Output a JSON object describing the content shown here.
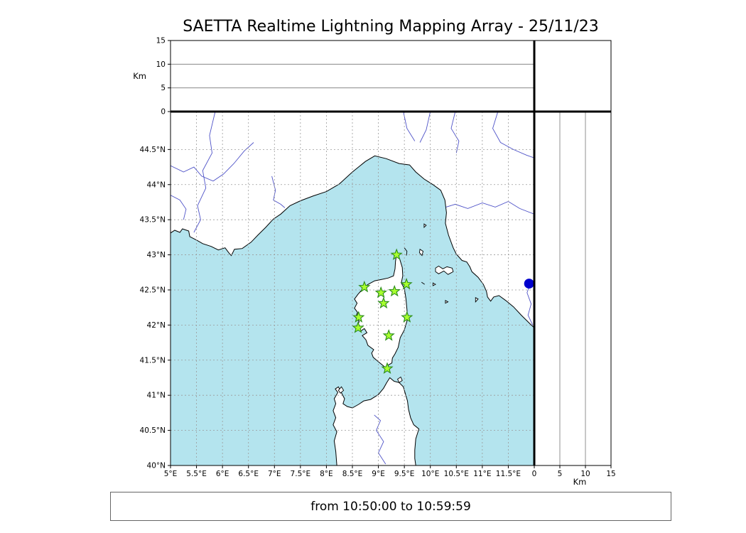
{
  "caption_text": "from 10:50:00 to 10:59:59",
  "colors": {
    "sea": "#b4e4ee",
    "land": "#ffffff",
    "coast": "#000000",
    "river": "#4f53c8",
    "grid": "#9a9a9a",
    "panel_grid": "#777777",
    "station_fill": "#a8ff2f",
    "station_edge": "#2a8a1a",
    "event_marker": "#0000cd"
  },
  "chart_data": {
    "type": "map",
    "title": "SAETTA Realtime Lightning Mapping Array - 25/11/23",
    "time_window": {
      "from": "10:50:00",
      "to": "10:59:59"
    },
    "map_panel": {
      "lon_range": [
        5.0,
        12.0
      ],
      "lat_range": [
        40.0,
        45.04
      ],
      "grid_style": "dashed",
      "lon_ticks": [
        {
          "value": 5,
          "label": "5°E"
        },
        {
          "value": 5.5,
          "label": "5.5°E"
        },
        {
          "value": 6,
          "label": "6°E"
        },
        {
          "value": 6.5,
          "label": "6.5°E"
        },
        {
          "value": 7,
          "label": "7°E"
        },
        {
          "value": 7.5,
          "label": "7.5°E"
        },
        {
          "value": 8,
          "label": "8°E"
        },
        {
          "value": 8.5,
          "label": "8.5°E"
        },
        {
          "value": 9,
          "label": "9°E"
        },
        {
          "value": 9.5,
          "label": "9.5°E"
        },
        {
          "value": 10,
          "label": "10°E"
        },
        {
          "value": 10.5,
          "label": "10.5°E"
        },
        {
          "value": 11,
          "label": "11°E"
        },
        {
          "value": 11.5,
          "label": "11.5°E"
        }
      ],
      "lat_ticks": [
        {
          "value": 40,
          "label": "40°N"
        },
        {
          "value": 40.5,
          "label": "40.5°N"
        },
        {
          "value": 41,
          "label": "41°N"
        },
        {
          "value": 41.5,
          "label": "41.5°N"
        },
        {
          "value": 42,
          "label": "42°N"
        },
        {
          "value": 42.5,
          "label": "42.5°N"
        },
        {
          "value": 43,
          "label": "43°N"
        },
        {
          "value": 43.5,
          "label": "43.5°N"
        },
        {
          "value": 44,
          "label": "44°N"
        },
        {
          "value": 44.5,
          "label": "44.5°N"
        }
      ]
    },
    "altitude_panels": {
      "unit_label": "Km",
      "range_km": [
        0,
        15
      ],
      "ticks_km": [
        {
          "value": 0,
          "label": "0"
        },
        {
          "value": 5,
          "label": "5"
        },
        {
          "value": 10,
          "label": "10"
        },
        {
          "value": 15,
          "label": "15"
        }
      ],
      "gridlines_km": [
        5,
        10
      ]
    },
    "stations_lon_lat": [
      [
        9.35,
        43.0
      ],
      [
        8.73,
        42.54
      ],
      [
        9.05,
        42.46
      ],
      [
        9.31,
        42.48
      ],
      [
        9.54,
        42.58
      ],
      [
        9.1,
        42.31
      ],
      [
        8.62,
        42.11
      ],
      [
        9.55,
        42.11
      ],
      [
        8.61,
        41.96
      ],
      [
        9.2,
        41.85
      ],
      [
        9.17,
        41.38
      ]
    ],
    "event_marker": {
      "lon": 11.9,
      "lat": 42.59
    },
    "geo": {
      "mainland": [
        [
          5.0,
          43.31
        ],
        [
          5.08,
          43.35
        ],
        [
          5.18,
          43.32
        ],
        [
          5.23,
          43.37
        ],
        [
          5.35,
          43.34
        ],
        [
          5.37,
          43.26
        ],
        [
          5.5,
          43.21
        ],
        [
          5.62,
          43.16
        ],
        [
          5.78,
          43.12
        ],
        [
          5.92,
          43.07
        ],
        [
          6.05,
          43.1
        ],
        [
          6.13,
          43.02
        ],
        [
          6.17,
          42.99
        ],
        [
          6.23,
          43.08
        ],
        [
          6.38,
          43.09
        ],
        [
          6.55,
          43.18
        ],
        [
          6.68,
          43.28
        ],
        [
          6.83,
          43.39
        ],
        [
          6.98,
          43.51
        ],
        [
          7.12,
          43.58
        ],
        [
          7.3,
          43.7
        ],
        [
          7.5,
          43.77
        ],
        [
          7.75,
          43.84
        ],
        [
          8.0,
          43.9
        ],
        [
          8.25,
          44.01
        ],
        [
          8.5,
          44.18
        ],
        [
          8.75,
          44.33
        ],
        [
          8.93,
          44.41
        ],
        [
          9.15,
          44.37
        ],
        [
          9.4,
          44.3
        ],
        [
          9.6,
          44.28
        ],
        [
          9.72,
          44.18
        ],
        [
          9.88,
          44.08
        ],
        [
          10.05,
          44.0
        ],
        [
          10.2,
          43.92
        ],
        [
          10.28,
          43.78
        ],
        [
          10.31,
          43.6
        ],
        [
          10.29,
          43.45
        ],
        [
          10.35,
          43.28
        ],
        [
          10.44,
          43.1
        ],
        [
          10.5,
          43.01
        ],
        [
          10.56,
          42.96
        ],
        [
          10.61,
          42.92
        ],
        [
          10.7,
          42.9
        ],
        [
          10.76,
          42.83
        ],
        [
          10.8,
          42.76
        ],
        [
          10.92,
          42.68
        ],
        [
          11.02,
          42.58
        ],
        [
          11.08,
          42.48
        ],
        [
          11.1,
          42.4
        ],
        [
          11.16,
          42.34
        ],
        [
          11.22,
          42.4
        ],
        [
          11.32,
          42.42
        ],
        [
          11.45,
          42.35
        ],
        [
          11.6,
          42.26
        ],
        [
          11.75,
          42.14
        ],
        [
          11.9,
          42.03
        ],
        [
          12.0,
          41.96
        ],
        [
          12.0,
          45.04
        ],
        [
          5.0,
          45.04
        ]
      ],
      "corsica": [
        [
          9.35,
          43.01
        ],
        [
          9.41,
          42.94
        ],
        [
          9.46,
          42.82
        ],
        [
          9.47,
          42.7
        ],
        [
          9.44,
          42.6
        ],
        [
          9.5,
          42.52
        ],
        [
          9.53,
          42.38
        ],
        [
          9.55,
          42.22
        ],
        [
          9.56,
          42.08
        ],
        [
          9.5,
          41.93
        ],
        [
          9.42,
          41.82
        ],
        [
          9.38,
          41.68
        ],
        [
          9.32,
          41.59
        ],
        [
          9.27,
          41.53
        ],
        [
          9.26,
          41.46
        ],
        [
          9.19,
          41.43
        ],
        [
          9.16,
          41.38
        ],
        [
          9.08,
          41.43
        ],
        [
          8.98,
          41.49
        ],
        [
          8.9,
          41.54
        ],
        [
          8.87,
          41.6
        ],
        [
          8.91,
          41.65
        ],
        [
          8.8,
          41.71
        ],
        [
          8.76,
          41.79
        ],
        [
          8.69,
          41.85
        ],
        [
          8.78,
          41.89
        ],
        [
          8.73,
          41.95
        ],
        [
          8.65,
          41.91
        ],
        [
          8.59,
          41.97
        ],
        [
          8.63,
          42.05
        ],
        [
          8.56,
          42.11
        ],
        [
          8.6,
          42.18
        ],
        [
          8.54,
          42.24
        ],
        [
          8.59,
          42.31
        ],
        [
          8.54,
          42.37
        ],
        [
          8.61,
          42.44
        ],
        [
          8.67,
          42.49
        ],
        [
          8.74,
          42.55
        ],
        [
          8.83,
          42.59
        ],
        [
          8.93,
          42.63
        ],
        [
          9.06,
          42.65
        ],
        [
          9.19,
          42.67
        ],
        [
          9.29,
          42.7
        ],
        [
          9.32,
          42.8
        ],
        [
          9.33,
          42.91
        ]
      ],
      "sardinia": [
        [
          8.2,
          40.0
        ],
        [
          8.18,
          40.2
        ],
        [
          8.15,
          40.35
        ],
        [
          8.2,
          40.48
        ],
        [
          8.13,
          40.58
        ],
        [
          8.18,
          40.68
        ],
        [
          8.13,
          40.78
        ],
        [
          8.18,
          40.88
        ],
        [
          8.15,
          40.95
        ],
        [
          8.22,
          41.04
        ],
        [
          8.17,
          41.09
        ],
        [
          8.23,
          41.12
        ],
        [
          8.28,
          41.05
        ],
        [
          8.35,
          40.95
        ],
        [
          8.32,
          40.88
        ],
        [
          8.4,
          40.84
        ],
        [
          8.5,
          40.82
        ],
        [
          8.62,
          40.87
        ],
        [
          8.72,
          40.92
        ],
        [
          8.85,
          40.94
        ],
        [
          9.0,
          41.01
        ],
        [
          9.1,
          41.1
        ],
        [
          9.16,
          41.18
        ],
        [
          9.22,
          41.25
        ],
        [
          9.3,
          41.2
        ],
        [
          9.4,
          41.18
        ],
        [
          9.48,
          41.12
        ],
        [
          9.52,
          41.02
        ],
        [
          9.56,
          40.92
        ],
        [
          9.58,
          40.8
        ],
        [
          9.62,
          40.68
        ],
        [
          9.68,
          40.58
        ],
        [
          9.78,
          40.52
        ],
        [
          9.72,
          40.38
        ],
        [
          9.7,
          40.22
        ],
        [
          9.7,
          40.1
        ],
        [
          9.72,
          40.0
        ]
      ],
      "islands": [
        [
          [
            10.1,
            42.81
          ],
          [
            10.16,
            42.84
          ],
          [
            10.24,
            42.8
          ],
          [
            10.32,
            42.83
          ],
          [
            10.42,
            42.81
          ],
          [
            10.44,
            42.76
          ],
          [
            10.34,
            42.72
          ],
          [
            10.26,
            42.77
          ],
          [
            10.16,
            42.73
          ],
          [
            10.1,
            42.76
          ]
        ],
        [
          [
            9.8,
            43.08
          ],
          [
            9.86,
            43.05
          ],
          [
            9.84,
            42.99
          ],
          [
            9.79,
            43.03
          ]
        ],
        [
          [
            9.88,
            43.44
          ],
          [
            9.92,
            43.42
          ],
          [
            9.88,
            43.39
          ]
        ],
        [
          [
            10.05,
            42.6
          ],
          [
            10.1,
            42.58
          ],
          [
            10.05,
            42.56
          ]
        ],
        [
          [
            10.29,
            42.35
          ],
          [
            10.34,
            42.33
          ],
          [
            10.29,
            42.31
          ]
        ],
        [
          [
            10.87,
            42.39
          ],
          [
            10.92,
            42.37
          ],
          [
            10.87,
            42.33
          ]
        ],
        [
          [
            8.23,
            41.07
          ],
          [
            8.29,
            41.12
          ],
          [
            8.33,
            41.07
          ],
          [
            8.27,
            41.03
          ]
        ],
        [
          [
            9.37,
            41.23
          ],
          [
            9.43,
            41.26
          ],
          [
            9.46,
            41.21
          ],
          [
            9.4,
            41.18
          ]
        ]
      ],
      "rivers": [
        [
          [
            5.86,
            45.04
          ],
          [
            5.75,
            44.7
          ],
          [
            5.8,
            44.45
          ],
          [
            5.62,
            44.2
          ],
          [
            5.68,
            43.95
          ],
          [
            5.52,
            43.7
          ],
          [
            5.58,
            43.5
          ],
          [
            5.45,
            43.32
          ]
        ],
        [
          [
            5.0,
            44.27
          ],
          [
            5.25,
            44.18
          ],
          [
            5.45,
            44.25
          ],
          [
            5.6,
            44.12
          ],
          [
            5.82,
            44.05
          ],
          [
            6.02,
            44.15
          ],
          [
            6.22,
            44.3
          ],
          [
            6.42,
            44.48
          ],
          [
            6.6,
            44.6
          ]
        ],
        [
          [
            5.0,
            43.85
          ],
          [
            5.18,
            43.78
          ],
          [
            5.3,
            43.65
          ],
          [
            5.25,
            43.5
          ]
        ],
        [
          [
            6.95,
            44.12
          ],
          [
            7.02,
            43.92
          ],
          [
            6.98,
            43.78
          ],
          [
            7.12,
            43.72
          ],
          [
            7.2,
            43.67
          ]
        ],
        [
          [
            9.48,
            45.04
          ],
          [
            9.55,
            44.8
          ],
          [
            9.7,
            44.62
          ]
        ],
        [
          [
            10.0,
            45.04
          ],
          [
            9.92,
            44.78
          ],
          [
            9.8,
            44.6
          ]
        ],
        [
          [
            10.48,
            45.04
          ],
          [
            10.4,
            44.8
          ],
          [
            10.55,
            44.62
          ],
          [
            10.5,
            44.45
          ]
        ],
        [
          [
            11.3,
            45.04
          ],
          [
            11.2,
            44.8
          ],
          [
            11.35,
            44.6
          ],
          [
            11.6,
            44.5
          ],
          [
            11.85,
            44.42
          ],
          [
            12.0,
            44.38
          ]
        ],
        [
          [
            12.0,
            43.58
          ],
          [
            11.72,
            43.66
          ],
          [
            11.5,
            43.76
          ],
          [
            11.25,
            43.68
          ],
          [
            11.0,
            43.74
          ],
          [
            10.72,
            43.66
          ],
          [
            10.48,
            43.72
          ],
          [
            10.3,
            43.68
          ]
        ],
        [
          [
            11.94,
            42.62
          ],
          [
            11.86,
            42.46
          ],
          [
            11.94,
            42.3
          ],
          [
            11.88,
            42.14
          ],
          [
            11.97,
            42.0
          ]
        ],
        [
          [
            9.14,
            40.02
          ],
          [
            9.0,
            40.18
          ],
          [
            9.1,
            40.34
          ],
          [
            8.96,
            40.5
          ],
          [
            9.04,
            40.64
          ],
          [
            8.92,
            40.72
          ]
        ]
      ],
      "islet_marks": [
        [
          [
            9.5,
            43.1
          ],
          [
            9.55,
            43.05
          ],
          [
            9.54,
            42.99
          ]
        ],
        [
          [
            9.83,
            42.61
          ],
          [
            9.89,
            42.58
          ]
        ]
      ]
    }
  }
}
